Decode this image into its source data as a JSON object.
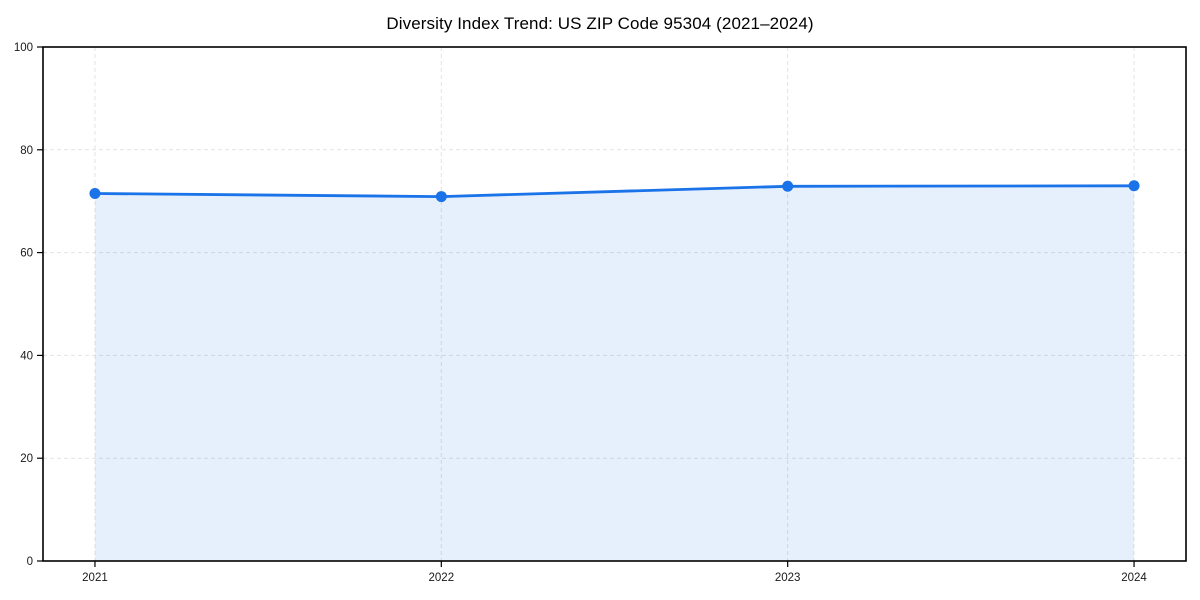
{
  "chart_data": {
    "type": "area",
    "title": "Diversity Index Trend: US ZIP Code 95304 (2021–2024)",
    "x": [
      2021,
      2022,
      2023,
      2024
    ],
    "x_tick_labels": [
      "2021",
      "2022",
      "2023",
      "2024"
    ],
    "series": [
      {
        "name": "Diversity Index",
        "values": [
          71.5,
          70.9,
          72.9,
          73.0
        ]
      }
    ],
    "xlabel": "",
    "ylabel": "",
    "ylim": [
      0,
      100
    ],
    "yticks": [
      0,
      20,
      40,
      60,
      80,
      100
    ],
    "ytick_labels": [
      "0",
      "20",
      "40",
      "60",
      "80",
      "100"
    ],
    "grid": true,
    "legend": "none",
    "colors": {
      "line": "#1a73e8",
      "marker": "#1a73e8",
      "fill": "rgba(26, 115, 232, 0.11)",
      "grid": "#e2e2e2",
      "frame": "#000000",
      "tick_text": "#1a1a1a",
      "background": "#ffffff"
    }
  }
}
